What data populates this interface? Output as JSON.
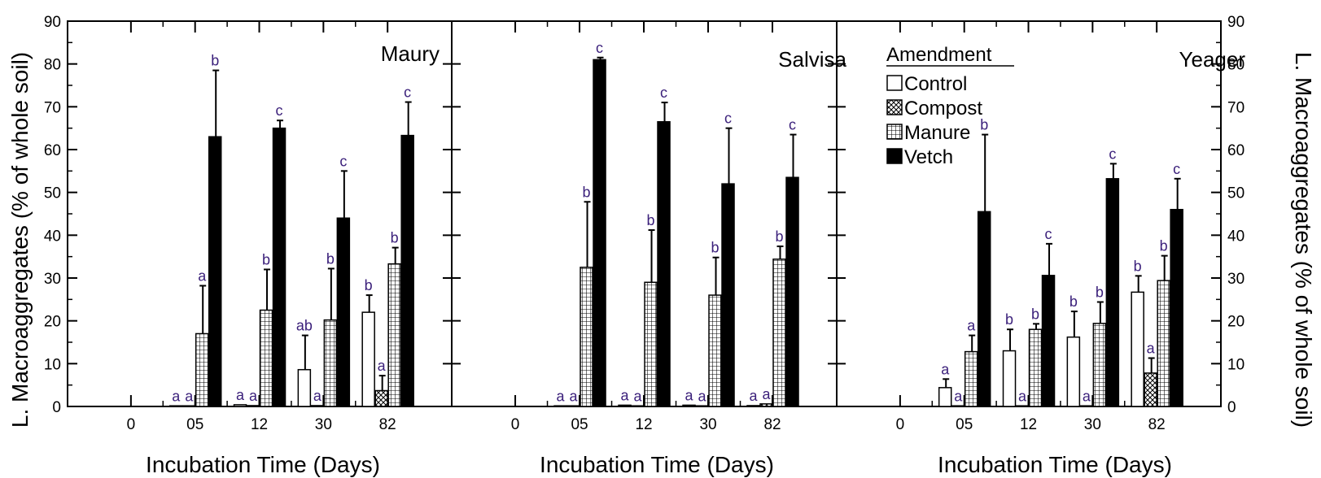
{
  "figure": {
    "y_label_left": "L. Macroaggregates (% of whole soil)",
    "y_label_right": "L. Macroaggregates (% of whole soil)",
    "x_label": "Incubation Time (Days)",
    "y_ticks": [
      "0",
      "10",
      "20",
      "30",
      "40",
      "50",
      "60",
      "70",
      "80",
      "90"
    ]
  },
  "legend": {
    "title": "Amendment",
    "items": [
      {
        "label": "Control",
        "pattern": "empty"
      },
      {
        "label": "Compost",
        "pattern": "crosshatch"
      },
      {
        "label": "Manure",
        "pattern": "grid"
      },
      {
        "label": "Vetch",
        "pattern": "solid"
      }
    ]
  },
  "chart_data": [
    {
      "type": "bar",
      "title": "Maury",
      "categories": [
        "0",
        "05",
        "12",
        "30",
        "82"
      ],
      "xlabel": "Incubation Time (Days)",
      "ylabel": "L. Macroaggregates (% of whole soil)",
      "ylim": [
        0,
        90
      ],
      "series": [
        {
          "name": "Control",
          "values": [
            null,
            0.1,
            0.4,
            8.6,
            22.0
          ],
          "errors": [
            null,
            0,
            0,
            8.0,
            4.0
          ],
          "labels": [
            null,
            "a",
            "a",
            "ab",
            "b"
          ]
        },
        {
          "name": "Compost",
          "values": [
            null,
            0.1,
            0.2,
            0.2,
            3.7
          ],
          "errors": [
            null,
            0,
            0,
            0,
            3.5
          ],
          "labels": [
            null,
            "a",
            "a",
            "a",
            "a"
          ]
        },
        {
          "name": "Manure",
          "values": [
            null,
            17.0,
            22.5,
            20.2,
            33.3
          ],
          "errors": [
            null,
            11.2,
            9.5,
            12.0,
            3.8
          ],
          "labels": [
            null,
            "a",
            "b",
            "b",
            "b"
          ]
        },
        {
          "name": "Vetch",
          "values": [
            null,
            63.0,
            65.0,
            44.0,
            63.3
          ],
          "errors": [
            null,
            15.5,
            1.8,
            11.0,
            7.8
          ],
          "labels": [
            null,
            "b",
            "c",
            "c",
            "c"
          ]
        }
      ]
    },
    {
      "type": "bar",
      "title": "Salvisa",
      "categories": [
        "0",
        "05",
        "12",
        "30",
        "82"
      ],
      "xlabel": "Incubation Time (Days)",
      "ylabel": "L. Macroaggregates (% of whole soil)",
      "ylim": [
        0,
        90
      ],
      "series": [
        {
          "name": "Control",
          "values": [
            null,
            0.1,
            0.3,
            0.3,
            0.2
          ],
          "errors": [
            null,
            0,
            0,
            0,
            0
          ],
          "labels": [
            null,
            "a",
            "a",
            "a",
            "a"
          ]
        },
        {
          "name": "Compost",
          "values": [
            null,
            0.1,
            0.1,
            0.1,
            0.6
          ],
          "errors": [
            null,
            0,
            0,
            0,
            0
          ],
          "labels": [
            null,
            "a",
            "a",
            "a",
            "a"
          ]
        },
        {
          "name": "Manure",
          "values": [
            null,
            32.5,
            29.0,
            26.0,
            34.4
          ],
          "errors": [
            null,
            15.3,
            12.2,
            8.8,
            3.0
          ],
          "labels": [
            null,
            "b",
            "b",
            "b",
            "b"
          ]
        },
        {
          "name": "Vetch",
          "values": [
            null,
            81.0,
            66.5,
            52.0,
            53.5
          ],
          "errors": [
            null,
            0.5,
            4.5,
            13.0,
            10.0
          ],
          "labels": [
            null,
            "c",
            "c",
            "c",
            "c"
          ]
        }
      ]
    },
    {
      "type": "bar",
      "title": "Yeager",
      "categories": [
        "0",
        "05",
        "12",
        "30",
        "82"
      ],
      "xlabel": "Incubation Time (Days)",
      "ylabel": "L. Macroaggregates (% of whole soil)",
      "ylim": [
        0,
        90
      ],
      "series": [
        {
          "name": "Control",
          "values": [
            null,
            4.4,
            13.0,
            16.2,
            26.7
          ],
          "errors": [
            null,
            2.0,
            5.0,
            6.0,
            3.8
          ],
          "labels": [
            null,
            "a",
            "b",
            "b",
            "b"
          ]
        },
        {
          "name": "Compost",
          "values": [
            null,
            0.1,
            0.1,
            0.1,
            7.8
          ],
          "errors": [
            null,
            0,
            0,
            0,
            3.5
          ],
          "labels": [
            null,
            "a",
            "a",
            "a",
            "a"
          ]
        },
        {
          "name": "Manure",
          "values": [
            null,
            12.8,
            18.0,
            19.4,
            29.4
          ],
          "errors": [
            null,
            3.8,
            1.3,
            5.0,
            5.8
          ],
          "labels": [
            null,
            "a",
            "b",
            "b",
            "b"
          ]
        },
        {
          "name": "Vetch",
          "values": [
            null,
            45.5,
            30.6,
            53.2,
            46.0
          ],
          "errors": [
            null,
            18.0,
            7.4,
            3.5,
            7.2
          ],
          "labels": [
            null,
            "b",
            "c",
            "c",
            "c"
          ]
        }
      ]
    }
  ]
}
